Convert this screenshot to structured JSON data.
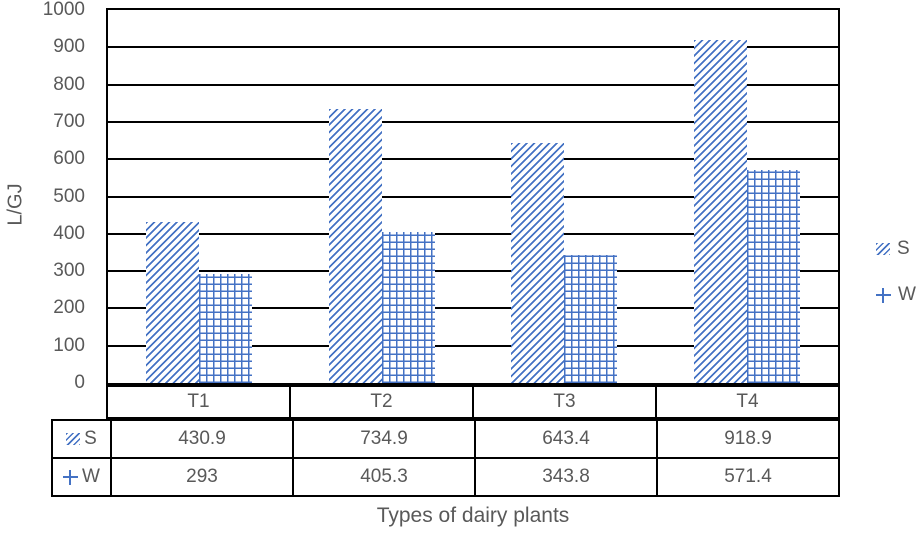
{
  "chart_data": {
    "type": "bar",
    "categories": [
      "T1",
      "T2",
      "T3",
      "T4"
    ],
    "series": [
      {
        "name": "S",
        "pattern": "diagonal-hatch",
        "values": [
          430.9,
          734.9,
          643.4,
          918.9
        ]
      },
      {
        "name": "W",
        "pattern": "grid-cross",
        "values": [
          293,
          405.3,
          343.8,
          571.4
        ]
      }
    ],
    "xlabel": "Types of dairy plants",
    "ylabel": "L/GJ",
    "ylim": [
      0,
      1000
    ],
    "ytick_step": 100,
    "grid": true,
    "legend_position": "right",
    "has_data_table": true,
    "colors": {
      "bar_pattern": "#4472C4",
      "axis_text": "#595959",
      "grid_line": "#000000",
      "background": "#ffffff"
    }
  }
}
